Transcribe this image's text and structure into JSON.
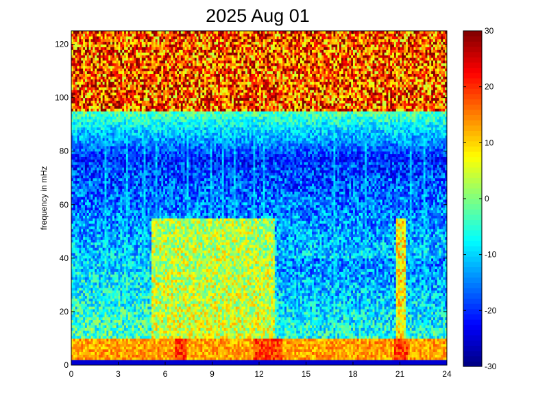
{
  "chart_data": {
    "type": "heatmap",
    "title": "2025 Aug 01",
    "xlabel": "",
    "ylabel": "frequency in mHz",
    "xlim": [
      0,
      24
    ],
    "ylim": [
      0,
      125
    ],
    "x_ticks": [
      0,
      3,
      6,
      9,
      12,
      15,
      18,
      21,
      24
    ],
    "y_ticks": [
      0,
      20,
      40,
      60,
      80,
      100,
      120
    ],
    "colorbar": {
      "colormap": "jet",
      "clim": [
        -30,
        30
      ],
      "ticks": [
        -30,
        -20,
        -10,
        0,
        10,
        20,
        30
      ]
    },
    "grid": false,
    "cells": {
      "x_step_hours": 0.125,
      "y_step_mHz": 1,
      "description_regions": [
        {
          "x_range": [
            0,
            24
          ],
          "y_range": [
            0,
            1.5
          ],
          "level": -25
        },
        {
          "x_range": [
            0,
            24
          ],
          "y_range": [
            1.5,
            10
          ],
          "level": 12
        },
        {
          "x_range": [
            5,
            13
          ],
          "y_range": [
            10,
            55
          ],
          "level": 6
        },
        {
          "x_range": [
            0,
            13
          ],
          "y_range": [
            10,
            70
          ],
          "level": -5
        },
        {
          "x_range": [
            13,
            24
          ],
          "y_range": [
            10,
            40
          ],
          "level": -12
        },
        {
          "x_range": [
            20.8,
            21.3
          ],
          "y_range": [
            5,
            55
          ],
          "level": 8
        },
        {
          "x_range": [
            0,
            24
          ],
          "y_range": [
            70,
            95
          ],
          "level": -22
        },
        {
          "x_range": [
            0,
            24
          ],
          "y_range": [
            95,
            125
          ],
          "level": 20
        }
      ]
    }
  }
}
